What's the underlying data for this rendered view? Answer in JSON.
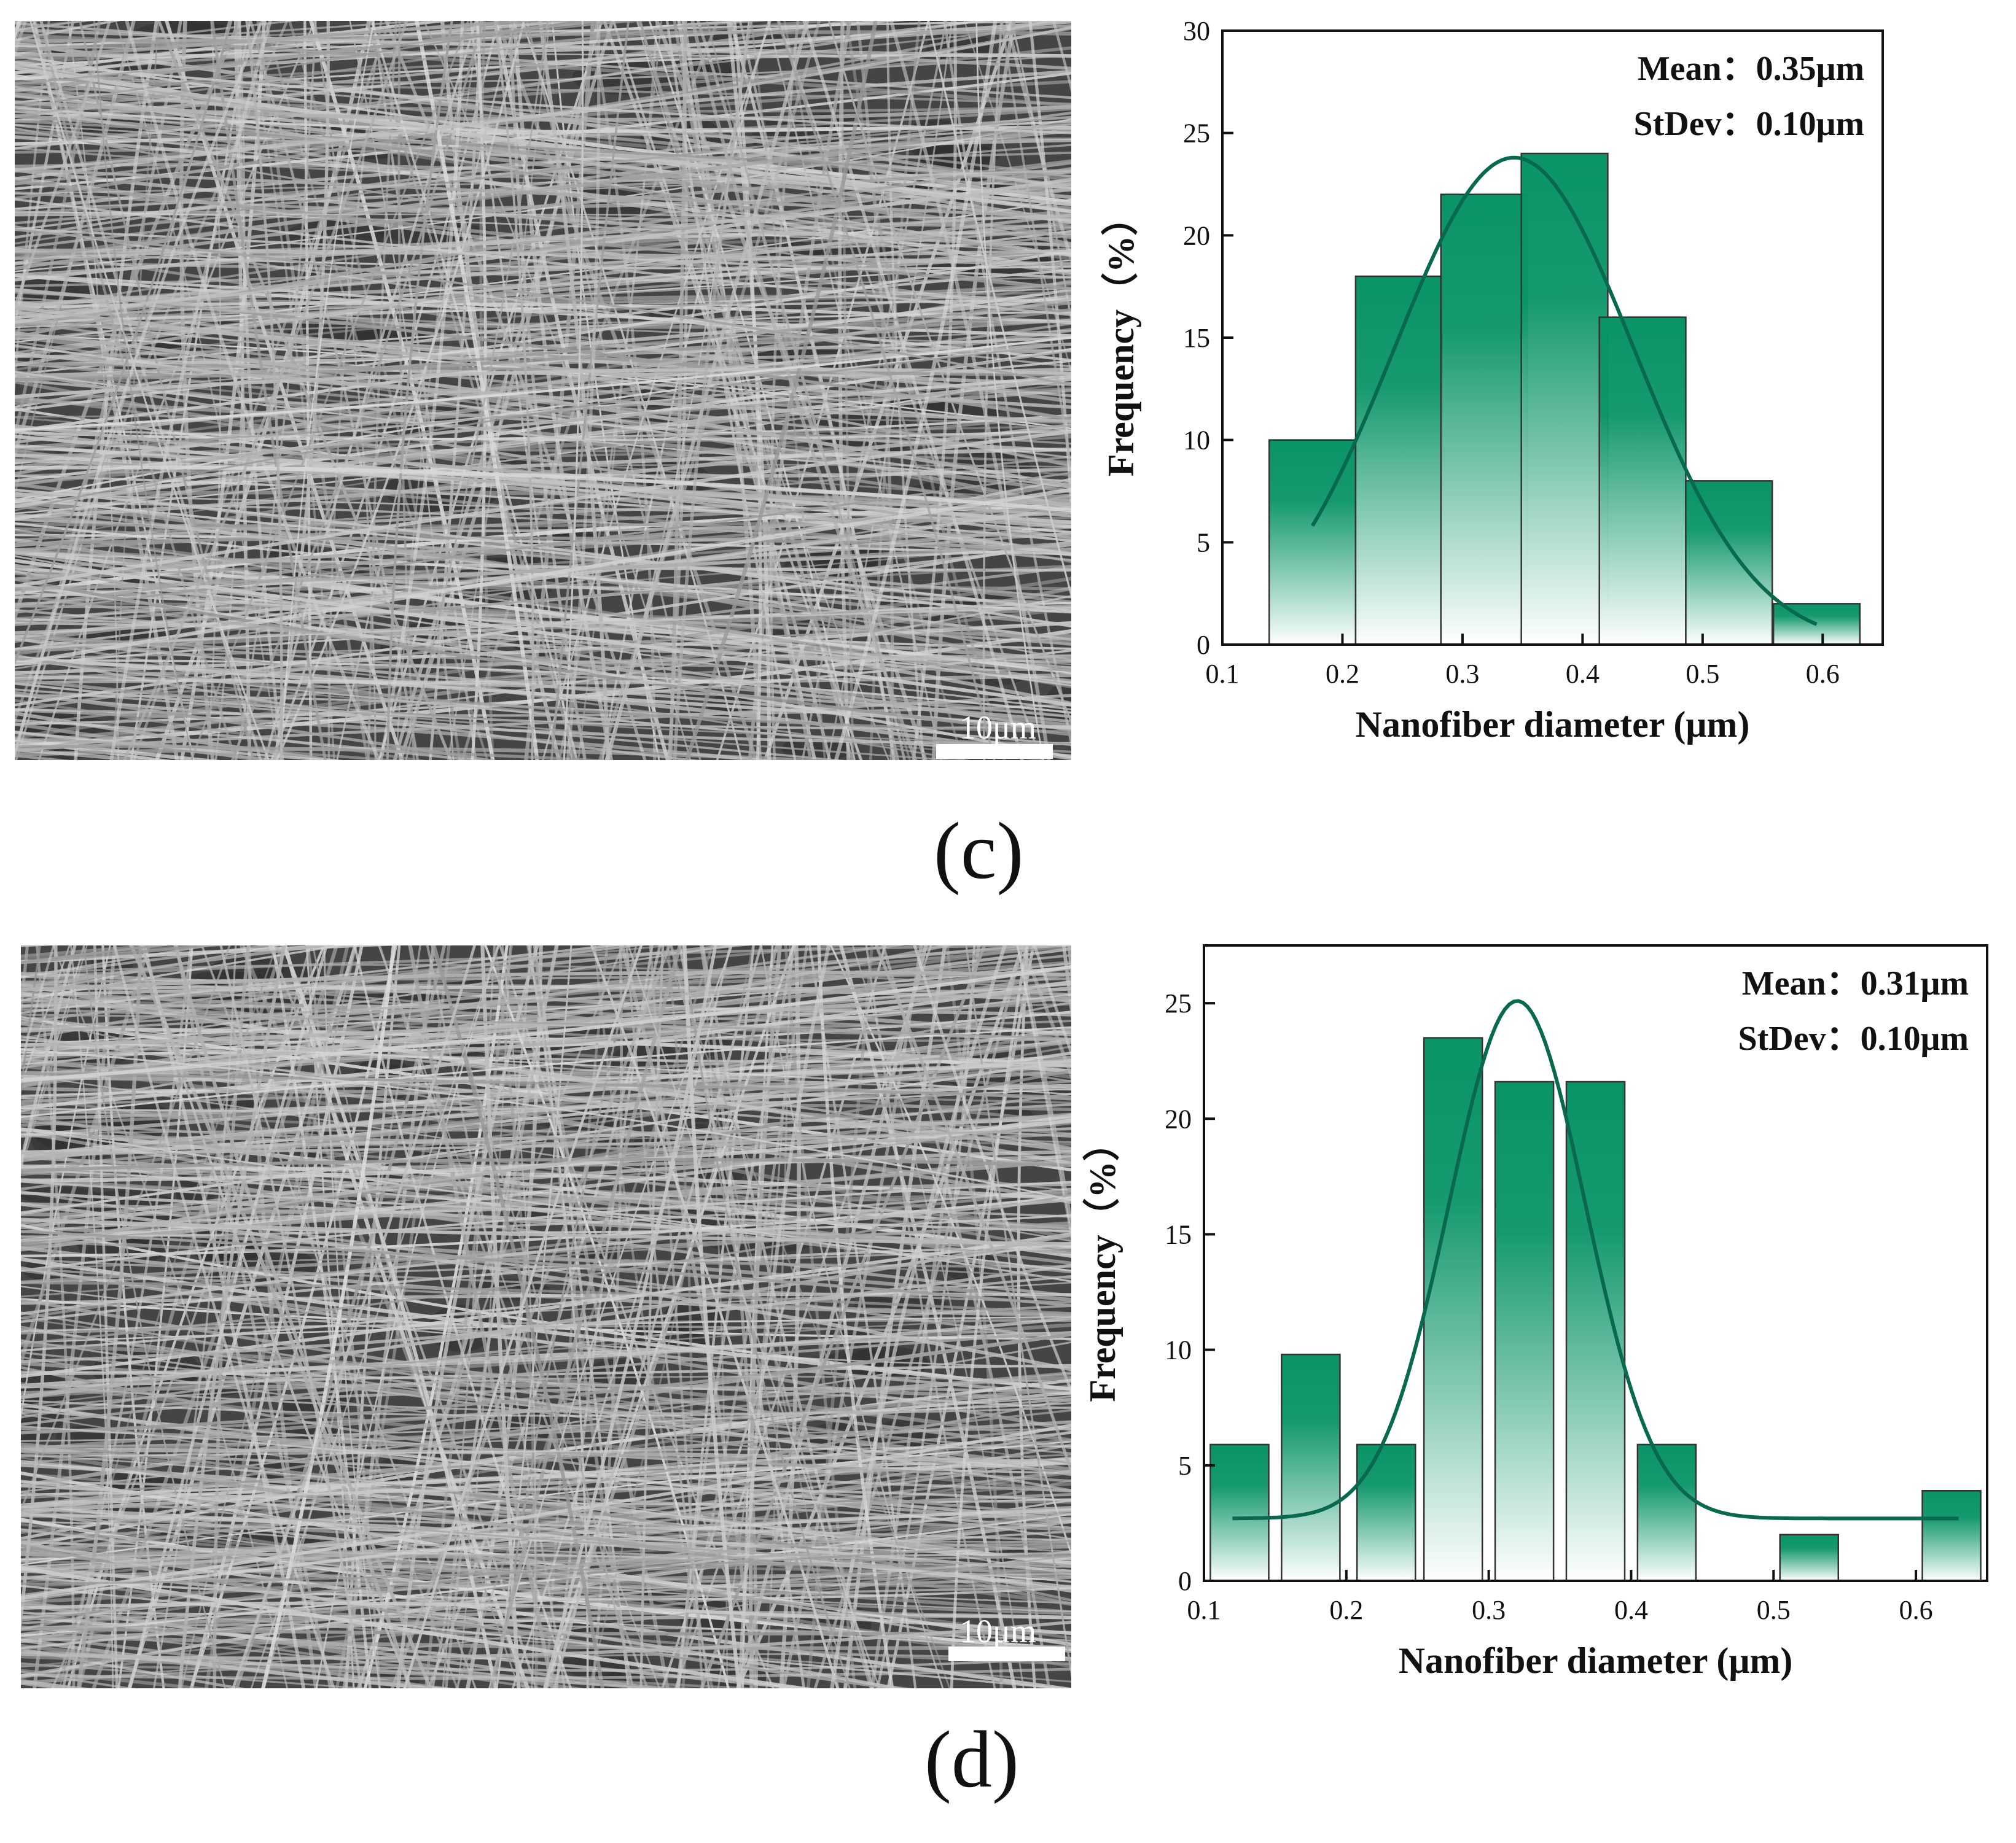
{
  "panels": [
    {
      "label": "(c)",
      "sem_image": {
        "scale_bar_label": "10μm"
      },
      "chart_data": {
        "type": "bar",
        "xlabel": "Nanofiber diameter (μm)",
        "ylabel": "Frequency（%）",
        "xlim": [
          0.1,
          0.65
        ],
        "ylim": [
          0,
          30
        ],
        "x_ticks": [
          "0.1",
          "0.2",
          "0.3",
          "0.4",
          "0.5",
          "0.6"
        ],
        "y_ticks": [
          "0",
          "5",
          "10",
          "15",
          "20",
          "25",
          "30"
        ],
        "bin_width": 0.072,
        "bars": [
          {
            "center": 0.175,
            "value": 10
          },
          {
            "center": 0.247,
            "value": 18
          },
          {
            "center": 0.318,
            "value": 22
          },
          {
            "center": 0.385,
            "value": 24
          },
          {
            "center": 0.45,
            "value": 16
          },
          {
            "center": 0.522,
            "value": 8
          },
          {
            "center": 0.595,
            "value": 2
          }
        ],
        "fit_curve": {
          "type": "gaussian",
          "peak_x": 0.343,
          "peak_y": 23.8,
          "sigma": 0.1,
          "x_range": [
            0.175,
            0.595
          ]
        },
        "annotations": {
          "mean": "Mean：0.35μm",
          "stdev": "StDev：0.10μm"
        },
        "colors": {
          "bar_top": "#0a9467",
          "bar_bottom": "#ffffff",
          "curve": "#08694f",
          "bar_edge": "#333333"
        }
      }
    },
    {
      "label": "(d)",
      "sem_image": {
        "scale_bar_label": "10μm"
      },
      "chart_data": {
        "type": "bar",
        "xlabel": "Nanofiber diameter (μm)",
        "ylabel": "Frequency（%）",
        "xlim": [
          0.1,
          0.65
        ],
        "ylim": [
          0,
          27.5
        ],
        "x_ticks": [
          "0.1",
          "0.2",
          "0.3",
          "0.4",
          "0.5",
          "0.6"
        ],
        "y_ticks": [
          "0",
          "5",
          "10",
          "15",
          "20",
          "25"
        ],
        "bin_width": 0.041,
        "bars": [
          {
            "center": 0.125,
            "value": 5.9
          },
          {
            "center": 0.175,
            "value": 9.8
          },
          {
            "center": 0.228,
            "value": 5.9
          },
          {
            "center": 0.275,
            "value": 23.5
          },
          {
            "center": 0.325,
            "value": 21.6
          },
          {
            "center": 0.375,
            "value": 21.6
          },
          {
            "center": 0.425,
            "value": 5.9
          },
          {
            "center": 0.525,
            "value": 2.0
          },
          {
            "center": 0.625,
            "value": 3.9
          }
        ],
        "fit_curve": {
          "type": "gaussian",
          "peak_x": 0.32,
          "peak_y": 25.1,
          "sigma": 0.048,
          "baseline": 2.7,
          "x_range": [
            0.12,
            0.63
          ]
        },
        "annotations": {
          "mean": "Mean：0.31μm",
          "stdev": "StDev：0.10μm"
        },
        "colors": {
          "bar_top": "#0a9467",
          "bar_bottom": "#ffffff",
          "curve": "#08694f",
          "bar_edge": "#333333"
        }
      }
    }
  ]
}
